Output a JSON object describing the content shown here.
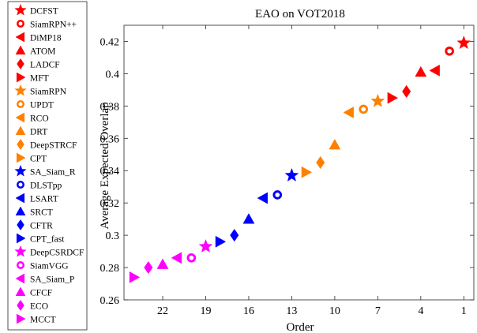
{
  "chart_data": {
    "type": "scatter",
    "title": "EAO on VOT2018",
    "xlabel": "Order",
    "ylabel": "Average Expected Overlap",
    "xlim": [
      24.7,
      0.3
    ],
    "ylim": [
      0.26,
      0.43
    ],
    "x_axis_reversed": true,
    "xticks": [
      22,
      19,
      16,
      13,
      10,
      7,
      4,
      1
    ],
    "yticks": [
      0.26,
      0.28,
      0.3,
      0.32,
      0.34,
      0.36,
      0.38,
      0.4,
      0.42
    ],
    "ytick_labels": [
      "0.26",
      "0.28",
      "0.3",
      "0.32",
      "0.34",
      "0.36",
      "0.38",
      "0.4",
      "0.42"
    ],
    "grid": false,
    "legend_position": "left, outside plot",
    "series": [
      {
        "name": "DCFST",
        "x": 1,
        "y": 0.419,
        "marker": "star",
        "color": "#ff0000"
      },
      {
        "name": "SiamRPN++",
        "x": 2,
        "y": 0.414,
        "marker": "circle",
        "color": "#ff0000"
      },
      {
        "name": "DiMP18",
        "x": 3,
        "y": 0.402,
        "marker": "triangle-left",
        "color": "#ff0000"
      },
      {
        "name": "ATOM",
        "x": 4,
        "y": 0.401,
        "marker": "triangle-up",
        "color": "#ff0000"
      },
      {
        "name": "LADCF",
        "x": 5,
        "y": 0.389,
        "marker": "diamond",
        "color": "#ff0000"
      },
      {
        "name": "MFT",
        "x": 6,
        "y": 0.385,
        "marker": "triangle-right",
        "color": "#ff0000"
      },
      {
        "name": "SiamRPN",
        "x": 7,
        "y": 0.383,
        "marker": "star",
        "color": "#ff8000"
      },
      {
        "name": "UPDT",
        "x": 8,
        "y": 0.378,
        "marker": "circle",
        "color": "#ff8000"
      },
      {
        "name": "RCO",
        "x": 9,
        "y": 0.376,
        "marker": "triangle-left",
        "color": "#ff8000"
      },
      {
        "name": "DRT",
        "x": 10,
        "y": 0.356,
        "marker": "triangle-up",
        "color": "#ff8000"
      },
      {
        "name": "DeepSTRCF",
        "x": 11,
        "y": 0.345,
        "marker": "diamond",
        "color": "#ff8000"
      },
      {
        "name": "CPT",
        "x": 12,
        "y": 0.339,
        "marker": "triangle-right",
        "color": "#ff8000"
      },
      {
        "name": "SA_Siam_R",
        "x": 13,
        "y": 0.337,
        "marker": "star",
        "color": "#0000ff"
      },
      {
        "name": "DLSTpp",
        "x": 14,
        "y": 0.325,
        "marker": "circle",
        "color": "#0000ff"
      },
      {
        "name": "LSART",
        "x": 15,
        "y": 0.323,
        "marker": "triangle-left",
        "color": "#0000ff"
      },
      {
        "name": "SRCT",
        "x": 16,
        "y": 0.31,
        "marker": "triangle-up",
        "color": "#0000ff"
      },
      {
        "name": "CFTR",
        "x": 17,
        "y": 0.3,
        "marker": "diamond",
        "color": "#0000ff"
      },
      {
        "name": "CPT_fast",
        "x": 18,
        "y": 0.296,
        "marker": "triangle-right",
        "color": "#0000ff"
      },
      {
        "name": "DeepCSRDCF",
        "x": 19,
        "y": 0.293,
        "marker": "star",
        "color": "#ff00ff"
      },
      {
        "name": "SiamVGG",
        "x": 20,
        "y": 0.286,
        "marker": "circle",
        "color": "#ff00ff"
      },
      {
        "name": "SA_Siam_P",
        "x": 21,
        "y": 0.286,
        "marker": "triangle-left",
        "color": "#ff00ff"
      },
      {
        "name": "CFCF",
        "x": 22,
        "y": 0.282,
        "marker": "triangle-up",
        "color": "#ff00ff"
      },
      {
        "name": "ECO",
        "x": 23,
        "y": 0.28,
        "marker": "diamond",
        "color": "#ff00ff"
      },
      {
        "name": "MCCT",
        "x": 24,
        "y": 0.274,
        "marker": "triangle-right",
        "color": "#ff00ff"
      }
    ]
  }
}
